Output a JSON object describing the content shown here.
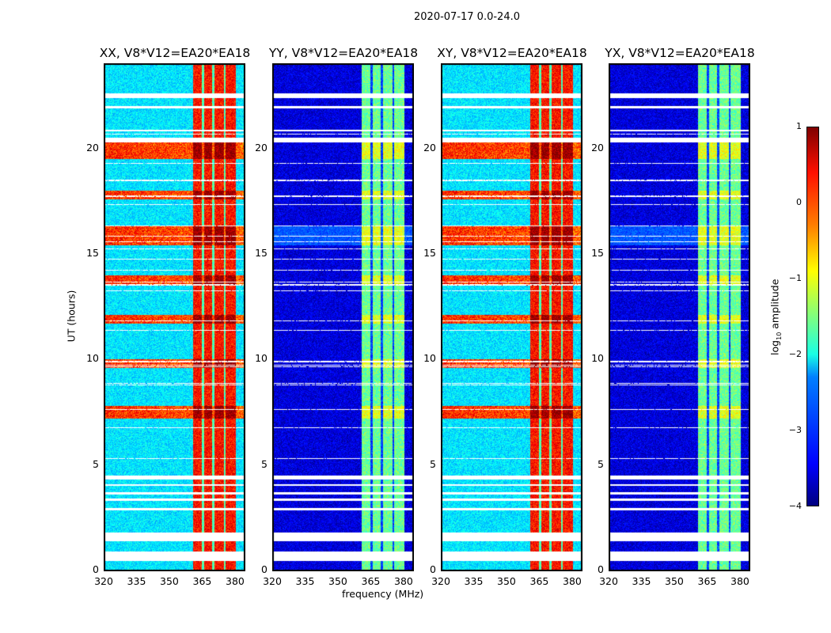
{
  "chart_data": {
    "type": "heatmap",
    "title": "2020-07-17 0.0-24.0",
    "xlabel": "frequency (MHz)",
    "ylabel": "UT (hours)",
    "xlim": [
      320,
      384
    ],
    "ylim": [
      0,
      24
    ],
    "xticks": [
      "320",
      "335",
      "350",
      "365",
      "380"
    ],
    "yticks": [
      "0",
      "5",
      "10",
      "15",
      "20"
    ],
    "panels": [
      {
        "title": "XX, V8*V12=EA20*EA18",
        "band_level": 0.3,
        "bg_level": -2.6
      },
      {
        "title": "YY, V8*V12=EA20*EA18",
        "band_level": -1.6,
        "bg_level": -3.9
      },
      {
        "title": "XY, V8*V12=EA20*EA18",
        "band_level": 0.3,
        "bg_level": -2.6
      },
      {
        "title": "YX, V8*V12=EA20*EA18",
        "band_level": -1.6,
        "bg_level": -3.9
      }
    ],
    "bright_band_mhz": [
      360.5,
      380
    ],
    "flagged_hours": [
      [
        0.45,
        0.9
      ],
      [
        1.4,
        1.8
      ],
      [
        2.85,
        2.95
      ],
      [
        3.3,
        3.4
      ],
      [
        3.6,
        3.7
      ],
      [
        4.0,
        4.1
      ],
      [
        4.3,
        4.5
      ],
      [
        20.3,
        20.5
      ],
      [
        20.8,
        20.9
      ],
      [
        21.9,
        22.0
      ],
      [
        22.4,
        22.6
      ]
    ],
    "colorbar": {
      "label": "log10 amplitude",
      "range": [
        -4,
        1
      ],
      "ticks": [
        "1",
        "0",
        "−1",
        "−2",
        "−3",
        "−4"
      ],
      "cmap": "jet"
    }
  }
}
